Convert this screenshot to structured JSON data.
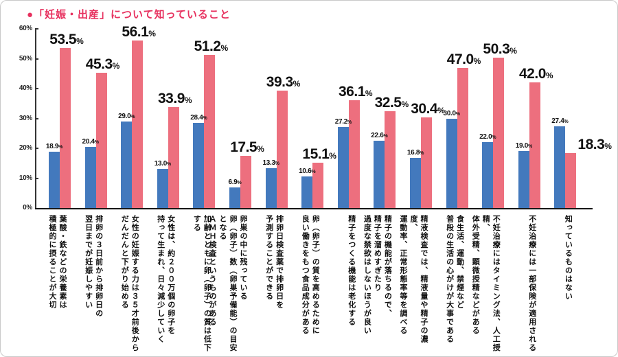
{
  "title": "●「妊娠・出産」について知っていること",
  "colors": {
    "title": "#e7315f",
    "blue_bar": "#4379bd",
    "pink_bar": "#ed6f7e",
    "axis": "#333333",
    "text": "#111111",
    "frame_border": "#c9c9c9"
  },
  "chart_data": {
    "type": "bar",
    "title": "「妊娠・出産」について知っていること",
    "ylim": [
      0,
      60
    ],
    "ytick_labels": [
      "0%",
      "10%",
      "20%",
      "30%",
      "40%",
      "50%",
      "60%"
    ],
    "grid": false,
    "legend": "none",
    "value_suffix": "%",
    "categories": [
      [
        "葉酸・鉄などの栄養素は",
        "積極的に摂ることが大切"
      ],
      [
        "排卵の３日前から排卵日の",
        "翌日までが妊娠しやすい"
      ],
      [
        "女性の妊娠する力は３５才前後から",
        "だんだんと下がり始める"
      ],
      [
        "女性は、約２００万個の卵子を",
        "持って生まれ、日々減少していく"
      ],
      [
        "加齢とともに卵（卵子）の質は低下する"
      ],
      [
        "卵巣の中に残っている",
        "卵（卵子）数（卵巣予備能）の目安となる",
        "ＡＭＨ検査というものがある"
      ],
      [
        "排卵日検査薬で排卵日を",
        "予測することができる"
      ],
      [
        "卵（卵子）の質を高めるために",
        "良い働きをもつ食品成分がある"
      ],
      [
        "精子をつくる機能は老化する"
      ],
      [
        "精子の機能が落ちるので、",
        "精子を溜めすぎたり",
        "過度な禁欲はしないほうが良い"
      ],
      [
        "精液検査では、精液量や精子の濃度、",
        "運動率、正常形態率等を調べる"
      ],
      [
        "食生活、運動、禁煙など",
        "普段の生活の心がけが大事である"
      ],
      [
        "不妊治療にはタイミング法、人工授精、",
        "体外受精、顕微授精などがある"
      ],
      [
        "不妊治療には一部保険が適用される"
      ],
      [
        "知っているものはない"
      ]
    ],
    "series": [
      {
        "name": "blue",
        "color": "#4379bd",
        "values": [
          18.9,
          20.4,
          29.0,
          13.0,
          28.4,
          6.9,
          13.3,
          10.6,
          27.2,
          22.6,
          16.8,
          30.0,
          22.0,
          19.0,
          27.4
        ]
      },
      {
        "name": "pink",
        "color": "#ed6f7e",
        "values": [
          53.5,
          45.3,
          56.1,
          33.9,
          51.2,
          17.5,
          39.3,
          15.1,
          36.1,
          32.5,
          30.4,
          47.0,
          50.3,
          42.0,
          18.3
        ]
      }
    ]
  }
}
